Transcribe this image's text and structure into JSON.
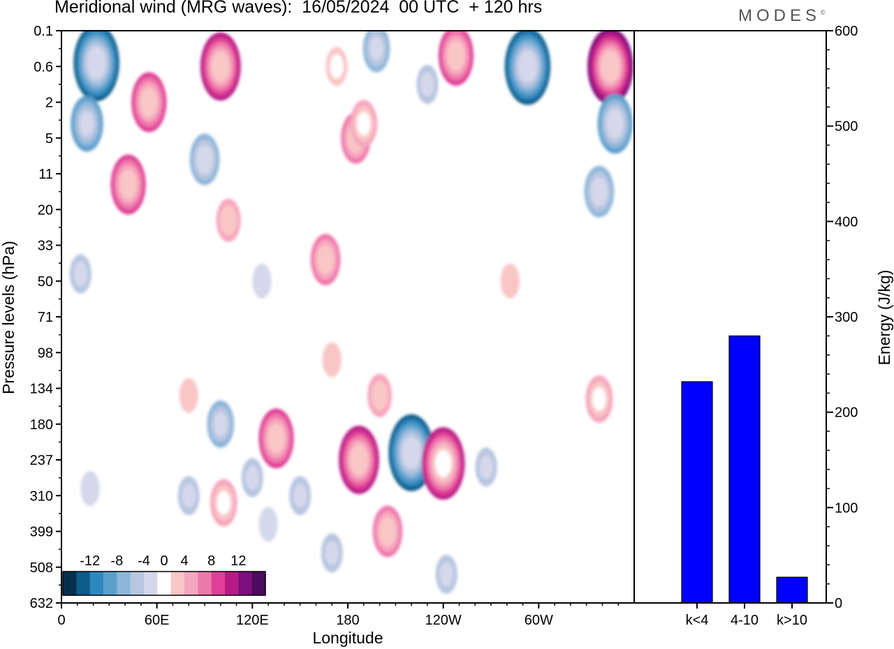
{
  "header": {
    "title": "Meridional wind (MRG waves):  16/05/2024  00 UTC  + 120 hrs",
    "brand": "MODES",
    "brand_mark": "©"
  },
  "chart_data": [
    {
      "type": "heatmap",
      "title": "Meridional wind (MRG waves):  16/05/2024  00 UTC  + 120 hrs",
      "xlabel": "Longitude",
      "ylabel": "Pressure levels (hPa)",
      "x_ticks": [
        "0",
        "60E",
        "120E",
        "180",
        "120W",
        "60W"
      ],
      "x_tick_values": [
        0,
        60,
        120,
        180,
        240,
        300
      ],
      "x_range": [
        0,
        360
      ],
      "y_ticks": [
        "0.1",
        "0.6",
        "2",
        "5",
        "11",
        "20",
        "33",
        "50",
        "71",
        "98",
        "134",
        "180",
        "237",
        "310",
        "399",
        "508",
        "632"
      ],
      "colorbar": {
        "tick_labels": [
          "-12",
          "-8",
          "-4",
          "0",
          "4",
          "8",
          "12"
        ],
        "levels": [
          -14,
          -12,
          -10,
          -8,
          -6,
          -4,
          -2,
          2,
          4,
          6,
          8,
          10,
          12,
          14
        ],
        "colors": [
          "#08304e",
          "#0e5c8a",
          "#2f88bd",
          "#5c9fcc",
          "#8fb6d9",
          "#b8c6e0",
          "#d4d8ea",
          "#ffffff",
          "#f9c6c6",
          "#f6a6be",
          "#ef78aa",
          "#df3f96",
          "#b81a86",
          "#7e0f7c",
          "#4d0a5e"
        ]
      },
      "cells": [
        {
          "lon": 22,
          "lev": 0.9,
          "v": -13
        },
        {
          "lon": 16,
          "lev": 2.6,
          "v": -8
        },
        {
          "lon": 55,
          "lev": 2.0,
          "v": 9
        },
        {
          "lon": 42,
          "lev": 4.3,
          "v": 9
        },
        {
          "lon": 100,
          "lev": 1.0,
          "v": 11
        },
        {
          "lon": 90,
          "lev": 3.6,
          "v": -7
        },
        {
          "lon": 105,
          "lev": 5.3,
          "v": 5
        },
        {
          "lon": 173,
          "lev": 1.0,
          "v": 4
        },
        {
          "lon": 185,
          "lev": 3.0,
          "v": 7
        },
        {
          "lon": 190,
          "lev": 2.6,
          "v": 6
        },
        {
          "lon": 166,
          "lev": 6.4,
          "v": 7
        },
        {
          "lon": 198,
          "lev": 0.5,
          "v": -6
        },
        {
          "lon": 248,
          "lev": 0.7,
          "v": 9
        },
        {
          "lon": 230,
          "lev": 1.5,
          "v": -4
        },
        {
          "lon": 293,
          "lev": 1.0,
          "v": -13
        },
        {
          "lon": 345,
          "lev": 1.0,
          "v": 13
        },
        {
          "lon": 348,
          "lev": 2.6,
          "v": -9
        },
        {
          "lon": 338,
          "lev": 4.5,
          "v": -7
        },
        {
          "lon": 12,
          "lev": 6.8,
          "v": -4
        },
        {
          "lon": 126,
          "lev": 7.0,
          "v": -3
        },
        {
          "lon": 282,
          "lev": 7.0,
          "v": 3
        },
        {
          "lon": 170,
          "lev": 9.2,
          "v": 3
        },
        {
          "lon": 200,
          "lev": 10.2,
          "v": 5
        },
        {
          "lon": 100,
          "lev": 11.0,
          "v": -6
        },
        {
          "lon": 135,
          "lev": 11.4,
          "v": 9
        },
        {
          "lon": 120,
          "lev": 12.5,
          "v": -4
        },
        {
          "lon": 187,
          "lev": 12.0,
          "v": 11
        },
        {
          "lon": 220,
          "lev": 11.8,
          "v": -13
        },
        {
          "lon": 240,
          "lev": 12.1,
          "v": 12
        },
        {
          "lon": 338,
          "lev": 10.3,
          "v": 6
        },
        {
          "lon": 80,
          "lev": 10.2,
          "v": 3
        },
        {
          "lon": 18,
          "lev": 12.8,
          "v": -3
        },
        {
          "lon": 80,
          "lev": 13.0,
          "v": -4
        },
        {
          "lon": 102,
          "lev": 13.2,
          "v": 6
        },
        {
          "lon": 130,
          "lev": 13.8,
          "v": -3
        },
        {
          "lon": 150,
          "lev": 13.0,
          "v": -4
        },
        {
          "lon": 170,
          "lev": 14.6,
          "v": -4
        },
        {
          "lon": 205,
          "lev": 14.0,
          "v": 7
        },
        {
          "lon": 267,
          "lev": 12.2,
          "v": -4
        },
        {
          "lon": 242,
          "lev": 15.2,
          "v": -4
        }
      ]
    },
    {
      "type": "bar",
      "categories": [
        "k<4",
        "4-10",
        "k>10"
      ],
      "values": [
        232,
        280,
        27
      ],
      "ylabel": "Energy (J/kg)",
      "ylim": [
        0,
        600
      ],
      "y_ticks": [
        "0",
        "100",
        "200",
        "300",
        "400",
        "500",
        "600"
      ],
      "bar_color": "#0000ff"
    }
  ]
}
